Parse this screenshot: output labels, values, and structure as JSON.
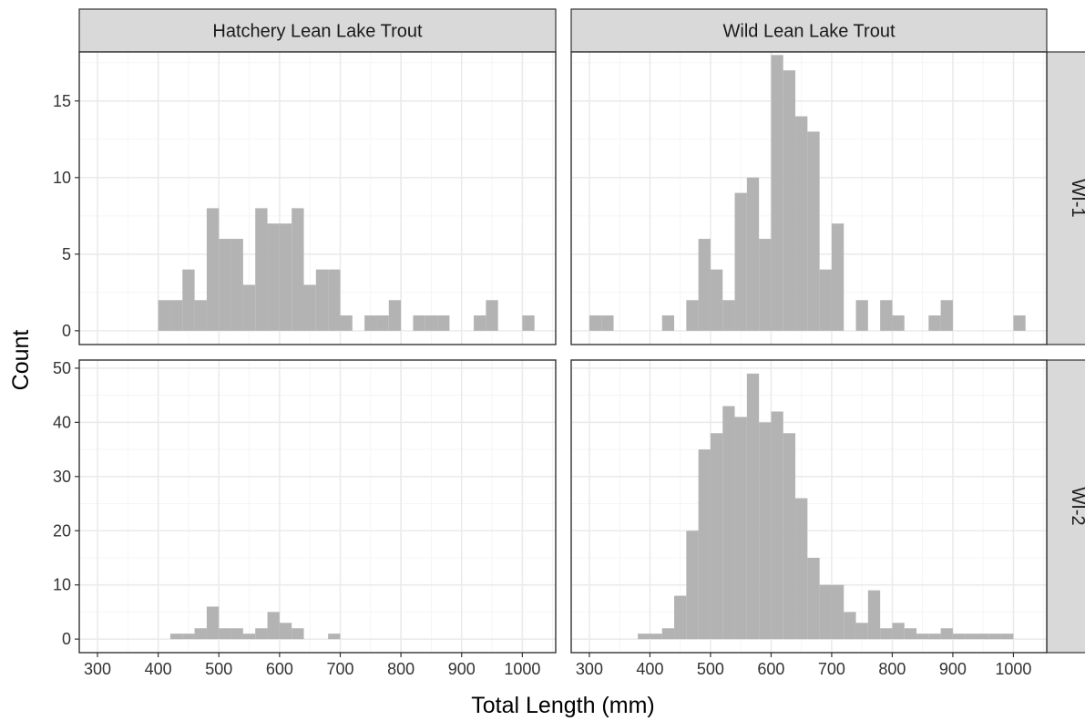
{
  "chart_data": {
    "type": "bar",
    "subtype": "faceted-histogram",
    "xlabel": "Total Length (mm)",
    "ylabel": "Count",
    "bin_width": 20,
    "x_ticks": [
      300,
      400,
      500,
      600,
      700,
      800,
      900,
      1000
    ],
    "xlim": [
      270,
      1055
    ],
    "grid": true,
    "columns": [
      "Hatchery Lean Lake Trout",
      "Wild Lean Lake Trout"
    ],
    "rows": [
      {
        "label": "WI-1",
        "ylim": [
          -0.9,
          18.2
        ],
        "y_ticks": [
          0,
          5,
          10,
          15
        ]
      },
      {
        "label": "WI-2",
        "ylim": [
          -2.5,
          51.5
        ],
        "y_ticks": [
          0,
          10,
          20,
          30,
          40,
          50
        ]
      }
    ],
    "facets": [
      {
        "column": "Hatchery Lean Lake Trout",
        "row": "WI-1",
        "bins": [
          {
            "x": 400,
            "count": 2
          },
          {
            "x": 420,
            "count": 2
          },
          {
            "x": 440,
            "count": 4
          },
          {
            "x": 460,
            "count": 2
          },
          {
            "x": 480,
            "count": 8
          },
          {
            "x": 500,
            "count": 6
          },
          {
            "x": 520,
            "count": 6
          },
          {
            "x": 540,
            "count": 3
          },
          {
            "x": 560,
            "count": 8
          },
          {
            "x": 580,
            "count": 7
          },
          {
            "x": 600,
            "count": 7
          },
          {
            "x": 620,
            "count": 8
          },
          {
            "x": 640,
            "count": 3
          },
          {
            "x": 660,
            "count": 4
          },
          {
            "x": 680,
            "count": 4
          },
          {
            "x": 700,
            "count": 1
          },
          {
            "x": 740,
            "count": 1
          },
          {
            "x": 760,
            "count": 1
          },
          {
            "x": 780,
            "count": 2
          },
          {
            "x": 820,
            "count": 1
          },
          {
            "x": 840,
            "count": 1
          },
          {
            "x": 860,
            "count": 1
          },
          {
            "x": 920,
            "count": 1
          },
          {
            "x": 940,
            "count": 2
          },
          {
            "x": 1000,
            "count": 1
          }
        ]
      },
      {
        "column": "Wild Lean Lake Trout",
        "row": "WI-1",
        "bins": [
          {
            "x": 300,
            "count": 1
          },
          {
            "x": 320,
            "count": 1
          },
          {
            "x": 420,
            "count": 1
          },
          {
            "x": 460,
            "count": 2
          },
          {
            "x": 480,
            "count": 6
          },
          {
            "x": 500,
            "count": 4
          },
          {
            "x": 520,
            "count": 2
          },
          {
            "x": 540,
            "count": 9
          },
          {
            "x": 560,
            "count": 10
          },
          {
            "x": 580,
            "count": 6
          },
          {
            "x": 600,
            "count": 18
          },
          {
            "x": 620,
            "count": 17
          },
          {
            "x": 640,
            "count": 14
          },
          {
            "x": 660,
            "count": 13
          },
          {
            "x": 680,
            "count": 4
          },
          {
            "x": 700,
            "count": 7
          },
          {
            "x": 740,
            "count": 2
          },
          {
            "x": 780,
            "count": 2
          },
          {
            "x": 800,
            "count": 1
          },
          {
            "x": 860,
            "count": 1
          },
          {
            "x": 880,
            "count": 2
          },
          {
            "x": 1000,
            "count": 1
          }
        ]
      },
      {
        "column": "Hatchery Lean Lake Trout",
        "row": "WI-2",
        "bins": [
          {
            "x": 420,
            "count": 1
          },
          {
            "x": 440,
            "count": 1
          },
          {
            "x": 460,
            "count": 2
          },
          {
            "x": 480,
            "count": 6
          },
          {
            "x": 500,
            "count": 2
          },
          {
            "x": 520,
            "count": 2
          },
          {
            "x": 540,
            "count": 1
          },
          {
            "x": 560,
            "count": 2
          },
          {
            "x": 580,
            "count": 5
          },
          {
            "x": 600,
            "count": 3
          },
          {
            "x": 620,
            "count": 2
          },
          {
            "x": 680,
            "count": 1
          }
        ]
      },
      {
        "column": "Wild Lean Lake Trout",
        "row": "WI-2",
        "bins": [
          {
            "x": 380,
            "count": 1
          },
          {
            "x": 400,
            "count": 1
          },
          {
            "x": 420,
            "count": 2
          },
          {
            "x": 440,
            "count": 8
          },
          {
            "x": 460,
            "count": 20
          },
          {
            "x": 480,
            "count": 35
          },
          {
            "x": 500,
            "count": 38
          },
          {
            "x": 520,
            "count": 43
          },
          {
            "x": 540,
            "count": 41
          },
          {
            "x": 560,
            "count": 49
          },
          {
            "x": 580,
            "count": 40
          },
          {
            "x": 600,
            "count": 42
          },
          {
            "x": 620,
            "count": 38
          },
          {
            "x": 640,
            "count": 26
          },
          {
            "x": 660,
            "count": 15
          },
          {
            "x": 680,
            "count": 10
          },
          {
            "x": 700,
            "count": 10
          },
          {
            "x": 720,
            "count": 5
          },
          {
            "x": 740,
            "count": 3
          },
          {
            "x": 760,
            "count": 9
          },
          {
            "x": 780,
            "count": 2
          },
          {
            "x": 800,
            "count": 3
          },
          {
            "x": 820,
            "count": 2
          },
          {
            "x": 840,
            "count": 1
          },
          {
            "x": 860,
            "count": 1
          },
          {
            "x": 880,
            "count": 2
          },
          {
            "x": 900,
            "count": 1
          },
          {
            "x": 920,
            "count": 1
          },
          {
            "x": 940,
            "count": 1
          },
          {
            "x": 960,
            "count": 1
          },
          {
            "x": 980,
            "count": 1
          }
        ]
      }
    ]
  }
}
